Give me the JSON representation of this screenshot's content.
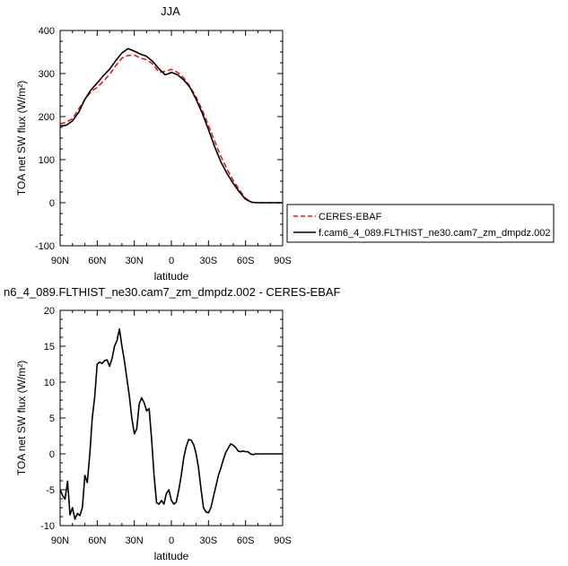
{
  "chart_data": [
    {
      "type": "line",
      "title": "JJA",
      "xlabel": "latitude",
      "ylabel": "TOA net SW flux (W/m²)",
      "ylim": [
        -100,
        400
      ],
      "yticks": [
        -100,
        0,
        100,
        200,
        300,
        400
      ],
      "xlim": [
        90,
        -90
      ],
      "xticks": [
        90,
        60,
        30,
        0,
        -30,
        -60,
        -90
      ],
      "xtick_labels": [
        "90N",
        "60N",
        "30N",
        "0",
        "30S",
        "60S",
        "90S"
      ],
      "grid": false,
      "legend_position": "right",
      "series": [
        {
          "name": "CERES-EBAF",
          "color": "#e31a1c",
          "style": "dashed",
          "x": [
            90,
            85,
            80,
            75,
            70,
            65,
            60,
            55,
            50,
            45,
            40,
            35,
            30,
            25,
            20,
            15,
            10,
            5,
            2,
            0,
            -5,
            -10,
            -15,
            -20,
            -25,
            -30,
            -35,
            -40,
            -45,
            -50,
            -55,
            -60,
            -65,
            -70,
            -75,
            -80,
            -85,
            -90
          ],
          "y": [
            183,
            187,
            195,
            218,
            240,
            258,
            268,
            282,
            298,
            318,
            336,
            342,
            343,
            336,
            332,
            322,
            303,
            305,
            308,
            310,
            303,
            290,
            270,
            245,
            215,
            180,
            143,
            108,
            78,
            52,
            30,
            10,
            1,
            0,
            0,
            0,
            0,
            0
          ]
        },
        {
          "name": "f.cam6_4_089.FLTHIST_ne30.cam7_zm_dmpdz.002",
          "color": "#000000",
          "style": "solid",
          "x": [
            90,
            85,
            80,
            75,
            70,
            65,
            60,
            55,
            50,
            45,
            40,
            35,
            30,
            25,
            20,
            15,
            10,
            5,
            2,
            0,
            -5,
            -10,
            -15,
            -20,
            -25,
            -30,
            -35,
            -40,
            -45,
            -50,
            -55,
            -60,
            -65,
            -70,
            -75,
            -80,
            -85,
            -90
          ],
          "y": [
            178,
            180,
            190,
            210,
            240,
            262,
            278,
            295,
            310,
            330,
            348,
            358,
            352,
            345,
            340,
            328,
            311,
            297,
            300,
            303,
            297,
            285,
            268,
            240,
            208,
            170,
            130,
            95,
            68,
            45,
            25,
            8,
            1,
            0,
            0,
            0,
            0,
            0
          ]
        }
      ]
    },
    {
      "type": "line",
      "title": "n6_4_089.FLTHIST_ne30.cam7_zm_dmpdz.002 - CERES-EBAF",
      "xlabel": "latitude",
      "ylabel": "TOA net SW flux (W/m²)",
      "ylim": [
        -10,
        20
      ],
      "yticks": [
        -10,
        -5,
        0,
        5,
        10,
        15,
        20
      ],
      "xlim": [
        90,
        -90
      ],
      "xticks": [
        90,
        60,
        30,
        0,
        -30,
        -60,
        -90
      ],
      "xtick_labels": [
        "90N",
        "60N",
        "30N",
        "0",
        "30S",
        "60S",
        "90S"
      ],
      "grid": false,
      "series": [
        {
          "color": "#000000",
          "x": [
            90,
            88,
            86,
            84,
            82,
            80,
            78,
            76,
            74,
            72,
            70,
            68,
            66,
            64,
            62,
            60,
            58,
            56,
            54,
            52,
            50,
            48,
            46,
            44,
            42,
            40,
            38,
            36,
            34,
            32,
            30,
            28,
            26,
            24,
            22,
            20,
            18,
            16,
            14,
            12,
            10,
            8,
            6,
            4,
            2,
            0,
            -2,
            -4,
            -6,
            -8,
            -10,
            -12,
            -14,
            -16,
            -18,
            -20,
            -22,
            -24,
            -26,
            -28,
            -30,
            -32,
            -34,
            -36,
            -38,
            -40,
            -42,
            -44,
            -46,
            -48,
            -50,
            -52,
            -54,
            -56,
            -58,
            -60,
            -62,
            -64,
            -66,
            -68,
            -70,
            -72,
            -74,
            -76,
            -78,
            -80,
            -82,
            -84,
            -86,
            -88,
            -90
          ],
          "y": [
            -5,
            -5.8,
            -6.3,
            -3.8,
            -8.5,
            -7.5,
            -9.1,
            -8.3,
            -8.6,
            -7.5,
            -3,
            -4,
            0,
            5,
            8,
            12.5,
            12.8,
            12.6,
            13,
            13.1,
            12.2,
            13.3,
            15,
            15.8,
            17.4,
            15,
            13,
            10.5,
            8,
            5,
            2.8,
            3.5,
            7,
            7.8,
            7.1,
            6,
            6.3,
            2,
            -3,
            -6.8,
            -7,
            -6.5,
            -7,
            -5.5,
            -5,
            -6.5,
            -7,
            -6.7,
            -5,
            -3,
            -0.5,
            1,
            2,
            1.9,
            1.3,
            0,
            -2,
            -5,
            -7.5,
            -8.1,
            -8.2,
            -7.5,
            -6,
            -4.5,
            -3,
            -2,
            -0.8,
            0.2,
            0.8,
            1.4,
            1.2,
            0.9,
            0.4,
            0.3,
            0.4,
            0.3,
            0.3,
            0,
            -0.1,
            0,
            0,
            0,
            0,
            0,
            0,
            0,
            0,
            0,
            0,
            0,
            0
          ]
        }
      ]
    }
  ]
}
